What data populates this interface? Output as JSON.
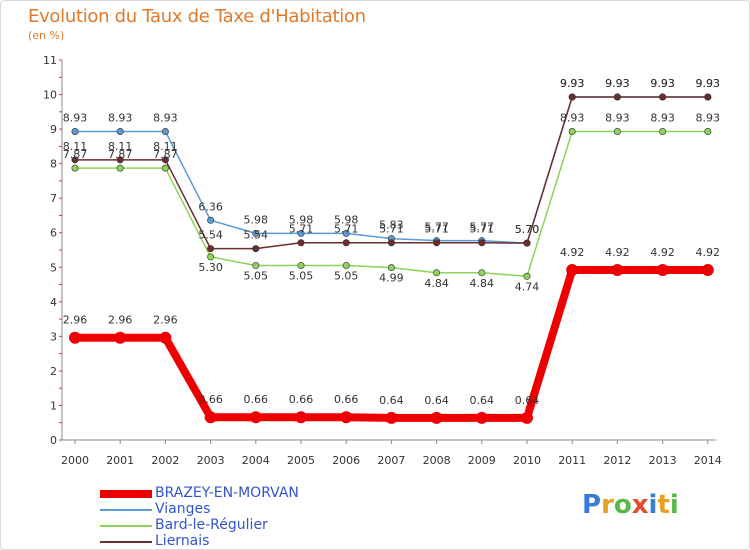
{
  "title": "Evolution du Taux de Taxe d'Habitation",
  "unit": "(en %)",
  "brand": {
    "letters": [
      "P",
      "r",
      "o",
      "x",
      "i",
      "t",
      "i"
    ],
    "colors": [
      "#3a7bd5",
      "#e8a020",
      "#58b84a",
      "#e84a2a",
      "#3a7bd5",
      "#e8a020",
      "#58b84a"
    ]
  },
  "chart_data": {
    "type": "line",
    "x": [
      "2000",
      "2001",
      "2002",
      "2003",
      "2004",
      "2005",
      "2006",
      "2007",
      "2008",
      "2009",
      "2010",
      "2011",
      "2012",
      "2013",
      "2014"
    ],
    "yticks": [
      "0",
      "1",
      "2",
      "3",
      "4",
      "5",
      "6",
      "7",
      "8",
      "9",
      "10",
      "11"
    ],
    "ylim": [
      0,
      11
    ],
    "grid": false,
    "legend": "bottom-left",
    "series": [
      {
        "name": "BRAZEY-EN-MORVAN",
        "color": "#ee0000",
        "values": [
          2.96,
          2.96,
          2.96,
          0.66,
          0.66,
          0.66,
          0.66,
          0.64,
          0.64,
          0.64,
          0.64,
          4.92,
          4.92,
          4.92,
          4.92
        ],
        "labels": [
          "2.96",
          "2.96",
          "2.96",
          "0.66",
          "0.66",
          "0.66",
          "0.66",
          "0.64",
          "0.64",
          "0.64",
          "0.64",
          "4.92",
          "4.92",
          "4.92",
          "4.92"
        ]
      },
      {
        "name": "Vianges",
        "color": "#5b9bd5",
        "values": [
          8.93,
          8.93,
          8.93,
          6.36,
          5.98,
          5.98,
          5.98,
          5.83,
          5.77,
          5.77,
          5.7,
          9.93,
          9.93,
          9.93,
          9.93
        ],
        "labels": [
          "8.93",
          "8.93",
          "8.93",
          "6.36",
          "5.98",
          "5.98",
          "5.98",
          "5.83",
          "5.77",
          "5.77",
          "5.70",
          "9.93",
          "9.93",
          "9.93",
          "9.93"
        ]
      },
      {
        "name": "Bard-le-Régulier",
        "color": "#8ed35a",
        "values": [
          7.87,
          7.87,
          7.87,
          5.3,
          5.05,
          5.05,
          5.05,
          4.99,
          4.84,
          4.84,
          4.74,
          8.93,
          8.93,
          8.93,
          8.93
        ],
        "labels": [
          "7.87",
          "7.87",
          "7.87",
          "5.30",
          "5.05",
          "5.05",
          "5.05",
          "4.99",
          "4.84",
          "4.84",
          "4.74",
          "8.93",
          "8.93",
          "8.93",
          "8.93"
        ]
      },
      {
        "name": "Liernais",
        "color": "#6b2e2e",
        "values": [
          8.11,
          8.11,
          8.11,
          5.54,
          5.54,
          5.71,
          5.71,
          5.71,
          5.71,
          5.71,
          5.7,
          9.93,
          9.93,
          9.93,
          9.93
        ],
        "labels": [
          "8.11",
          "8.11",
          "8.11",
          "5.54",
          "5.54",
          "5.71",
          "5.71",
          "5.71",
          "5.71",
          "5.71",
          "5.70",
          "9.93",
          "9.93",
          "9.93",
          "9.93"
        ]
      }
    ]
  }
}
